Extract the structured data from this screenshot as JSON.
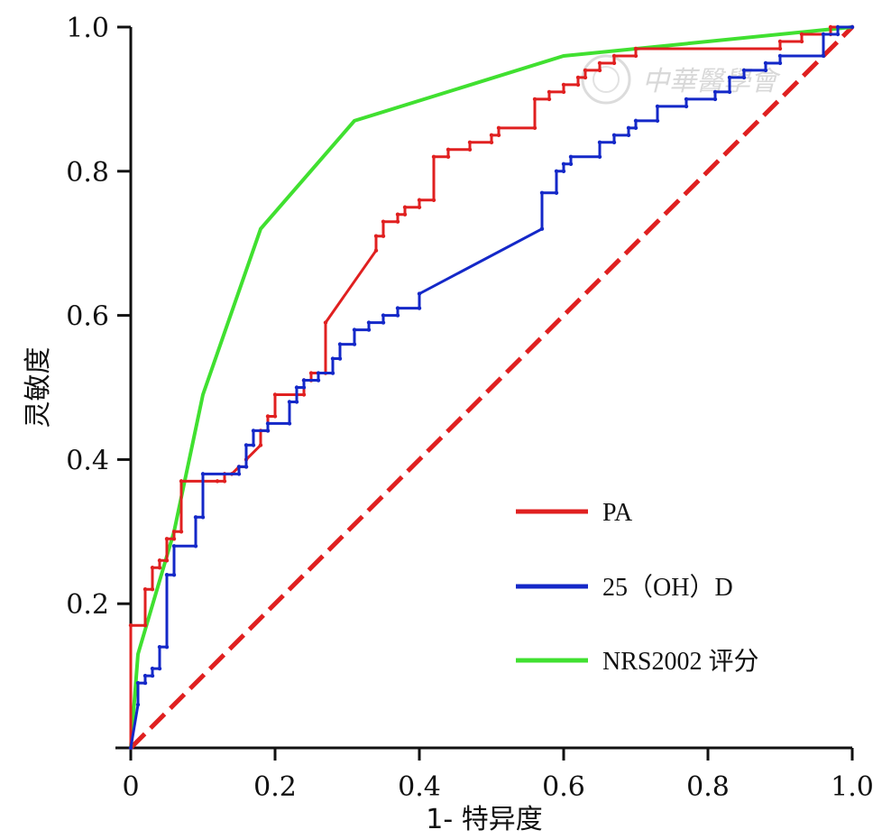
{
  "chart_data": {
    "type": "line",
    "xlabel": "1- 特异度",
    "ylabel": "灵敏度",
    "xlim": [
      0,
      1
    ],
    "ylim": [
      0,
      1
    ],
    "x_ticks": [
      "0",
      "0.2",
      "0.4",
      "0.6",
      "0.8",
      "1.0"
    ],
    "y_ticks": [
      "0.2",
      "0.4",
      "0.6",
      "0.8",
      "1.0"
    ],
    "x_tick_values": [
      0,
      0.2,
      0.4,
      0.6,
      0.8,
      1.0
    ],
    "y_tick_values": [
      0.2,
      0.4,
      0.6,
      0.8,
      1.0
    ],
    "grid": false,
    "legend_position": "bottom-right",
    "reference_line": {
      "color": "#e02020",
      "style": "dashed",
      "points": [
        [
          0,
          0
        ],
        [
          1,
          1
        ]
      ]
    },
    "series": [
      {
        "name": "PA",
        "color": "#e02020",
        "points": [
          [
            0,
            0
          ],
          [
            0,
            0.17
          ],
          [
            0.02,
            0.17
          ],
          [
            0.02,
            0.22
          ],
          [
            0.03,
            0.22
          ],
          [
            0.03,
            0.25
          ],
          [
            0.04,
            0.25
          ],
          [
            0.04,
            0.26
          ],
          [
            0.05,
            0.26
          ],
          [
            0.05,
            0.29
          ],
          [
            0.06,
            0.29
          ],
          [
            0.06,
            0.3
          ],
          [
            0.07,
            0.3
          ],
          [
            0.07,
            0.37
          ],
          [
            0.12,
            0.37
          ],
          [
            0.13,
            0.37
          ],
          [
            0.13,
            0.38
          ],
          [
            0.14,
            0.38
          ],
          [
            0.15,
            0.39
          ],
          [
            0.16,
            0.39
          ],
          [
            0.16,
            0.4
          ],
          [
            0.18,
            0.42
          ],
          [
            0.18,
            0.44
          ],
          [
            0.19,
            0.44
          ],
          [
            0.19,
            0.46
          ],
          [
            0.2,
            0.46
          ],
          [
            0.2,
            0.49
          ],
          [
            0.23,
            0.49
          ],
          [
            0.24,
            0.49
          ],
          [
            0.24,
            0.51
          ],
          [
            0.25,
            0.51
          ],
          [
            0.25,
            0.52
          ],
          [
            0.27,
            0.52
          ],
          [
            0.27,
            0.59
          ],
          [
            0.34,
            0.69
          ],
          [
            0.34,
            0.71
          ],
          [
            0.35,
            0.71
          ],
          [
            0.35,
            0.73
          ],
          [
            0.37,
            0.73
          ],
          [
            0.37,
            0.74
          ],
          [
            0.38,
            0.74
          ],
          [
            0.38,
            0.75
          ],
          [
            0.4,
            0.75
          ],
          [
            0.4,
            0.76
          ],
          [
            0.42,
            0.76
          ],
          [
            0.42,
            0.82
          ],
          [
            0.44,
            0.82
          ],
          [
            0.44,
            0.83
          ],
          [
            0.47,
            0.83
          ],
          [
            0.47,
            0.84
          ],
          [
            0.5,
            0.84
          ],
          [
            0.5,
            0.85
          ],
          [
            0.51,
            0.85
          ],
          [
            0.51,
            0.86
          ],
          [
            0.56,
            0.86
          ],
          [
            0.56,
            0.9
          ],
          [
            0.58,
            0.9
          ],
          [
            0.58,
            0.91
          ],
          [
            0.6,
            0.91
          ],
          [
            0.6,
            0.92
          ],
          [
            0.62,
            0.92
          ],
          [
            0.62,
            0.93
          ],
          [
            0.63,
            0.93
          ],
          [
            0.63,
            0.94
          ],
          [
            0.65,
            0.94
          ],
          [
            0.65,
            0.95
          ],
          [
            0.67,
            0.95
          ],
          [
            0.67,
            0.96
          ],
          [
            0.7,
            0.96
          ],
          [
            0.7,
            0.97
          ],
          [
            0.9,
            0.97
          ],
          [
            0.9,
            0.98
          ],
          [
            0.93,
            0.98
          ],
          [
            0.93,
            0.99
          ],
          [
            0.97,
            0.99
          ],
          [
            0.97,
            1.0
          ],
          [
            1.0,
            1.0
          ]
        ]
      },
      {
        "name": "25（OH）D",
        "color": "#1428c8",
        "points": [
          [
            0,
            0
          ],
          [
            0.01,
            0.06
          ],
          [
            0.01,
            0.09
          ],
          [
            0.02,
            0.09
          ],
          [
            0.02,
            0.1
          ],
          [
            0.03,
            0.1
          ],
          [
            0.03,
            0.11
          ],
          [
            0.04,
            0.11
          ],
          [
            0.04,
            0.14
          ],
          [
            0.05,
            0.14
          ],
          [
            0.05,
            0.24
          ],
          [
            0.06,
            0.24
          ],
          [
            0.06,
            0.28
          ],
          [
            0.09,
            0.28
          ],
          [
            0.09,
            0.32
          ],
          [
            0.1,
            0.32
          ],
          [
            0.1,
            0.38
          ],
          [
            0.15,
            0.38
          ],
          [
            0.15,
            0.39
          ],
          [
            0.16,
            0.39
          ],
          [
            0.16,
            0.42
          ],
          [
            0.17,
            0.42
          ],
          [
            0.17,
            0.44
          ],
          [
            0.19,
            0.44
          ],
          [
            0.19,
            0.45
          ],
          [
            0.22,
            0.45
          ],
          [
            0.22,
            0.48
          ],
          [
            0.23,
            0.48
          ],
          [
            0.23,
            0.5
          ],
          [
            0.24,
            0.5
          ],
          [
            0.24,
            0.51
          ],
          [
            0.26,
            0.51
          ],
          [
            0.26,
            0.52
          ],
          [
            0.28,
            0.52
          ],
          [
            0.28,
            0.54
          ],
          [
            0.29,
            0.54
          ],
          [
            0.29,
            0.56
          ],
          [
            0.31,
            0.56
          ],
          [
            0.31,
            0.58
          ],
          [
            0.33,
            0.58
          ],
          [
            0.33,
            0.59
          ],
          [
            0.35,
            0.59
          ],
          [
            0.35,
            0.6
          ],
          [
            0.37,
            0.6
          ],
          [
            0.37,
            0.61
          ],
          [
            0.4,
            0.61
          ],
          [
            0.4,
            0.63
          ],
          [
            0.57,
            0.72
          ],
          [
            0.57,
            0.77
          ],
          [
            0.59,
            0.77
          ],
          [
            0.59,
            0.8
          ],
          [
            0.6,
            0.8
          ],
          [
            0.6,
            0.81
          ],
          [
            0.61,
            0.81
          ],
          [
            0.61,
            0.82
          ],
          [
            0.65,
            0.82
          ],
          [
            0.65,
            0.84
          ],
          [
            0.67,
            0.84
          ],
          [
            0.67,
            0.85
          ],
          [
            0.69,
            0.85
          ],
          [
            0.69,
            0.86
          ],
          [
            0.7,
            0.86
          ],
          [
            0.7,
            0.87
          ],
          [
            0.73,
            0.87
          ],
          [
            0.73,
            0.89
          ],
          [
            0.77,
            0.89
          ],
          [
            0.77,
            0.9
          ],
          [
            0.81,
            0.9
          ],
          [
            0.81,
            0.91
          ],
          [
            0.83,
            0.91
          ],
          [
            0.83,
            0.93
          ],
          [
            0.85,
            0.93
          ],
          [
            0.85,
            0.94
          ],
          [
            0.88,
            0.94
          ],
          [
            0.88,
            0.95
          ],
          [
            0.9,
            0.95
          ],
          [
            0.9,
            0.96
          ],
          [
            0.96,
            0.96
          ],
          [
            0.96,
            0.99
          ],
          [
            0.98,
            0.99
          ],
          [
            0.98,
            1.0
          ],
          [
            1.0,
            1.0
          ]
        ]
      },
      {
        "name": "NRS2002 评分",
        "color": "#40e030",
        "points": [
          [
            0,
            0
          ],
          [
            0.01,
            0.13
          ],
          [
            0.06,
            0.3
          ],
          [
            0.1,
            0.49
          ],
          [
            0.18,
            0.72
          ],
          [
            0.31,
            0.87
          ],
          [
            0.6,
            0.96
          ],
          [
            1.0,
            1.0
          ]
        ]
      }
    ]
  }
}
